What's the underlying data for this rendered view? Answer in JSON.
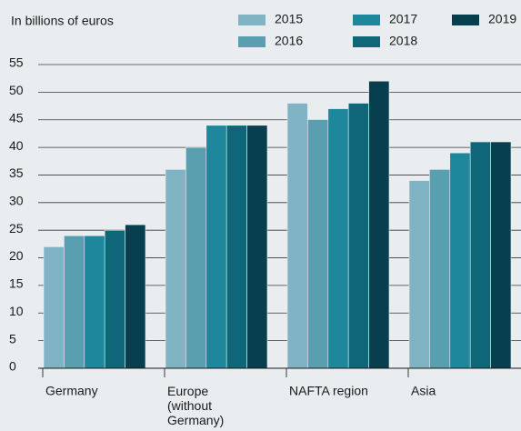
{
  "chart_data": {
    "type": "bar",
    "subtitle": "In billions of euros",
    "categories": [
      "Germany",
      "Europe\n(without\nGermany)",
      "NAFTA region",
      "Asia"
    ],
    "series": [
      {
        "name": "2015",
        "color": "#80b4c4",
        "values": [
          22,
          36,
          48,
          34
        ]
      },
      {
        "name": "2016",
        "color": "#5a9faf",
        "values": [
          24,
          40,
          45,
          36
        ]
      },
      {
        "name": "2017",
        "color": "#1f879b",
        "values": [
          24,
          44,
          47,
          39
        ]
      },
      {
        "name": "2018",
        "color": "#0f6679",
        "values": [
          25,
          44,
          48,
          41
        ]
      },
      {
        "name": "2019",
        "color": "#073f4e",
        "values": [
          26,
          44,
          52,
          41
        ]
      }
    ],
    "ylim": [
      0,
      55
    ],
    "yticks": [
      0,
      5,
      10,
      15,
      20,
      25,
      30,
      35,
      40,
      45,
      50,
      55
    ],
    "grid": true
  }
}
